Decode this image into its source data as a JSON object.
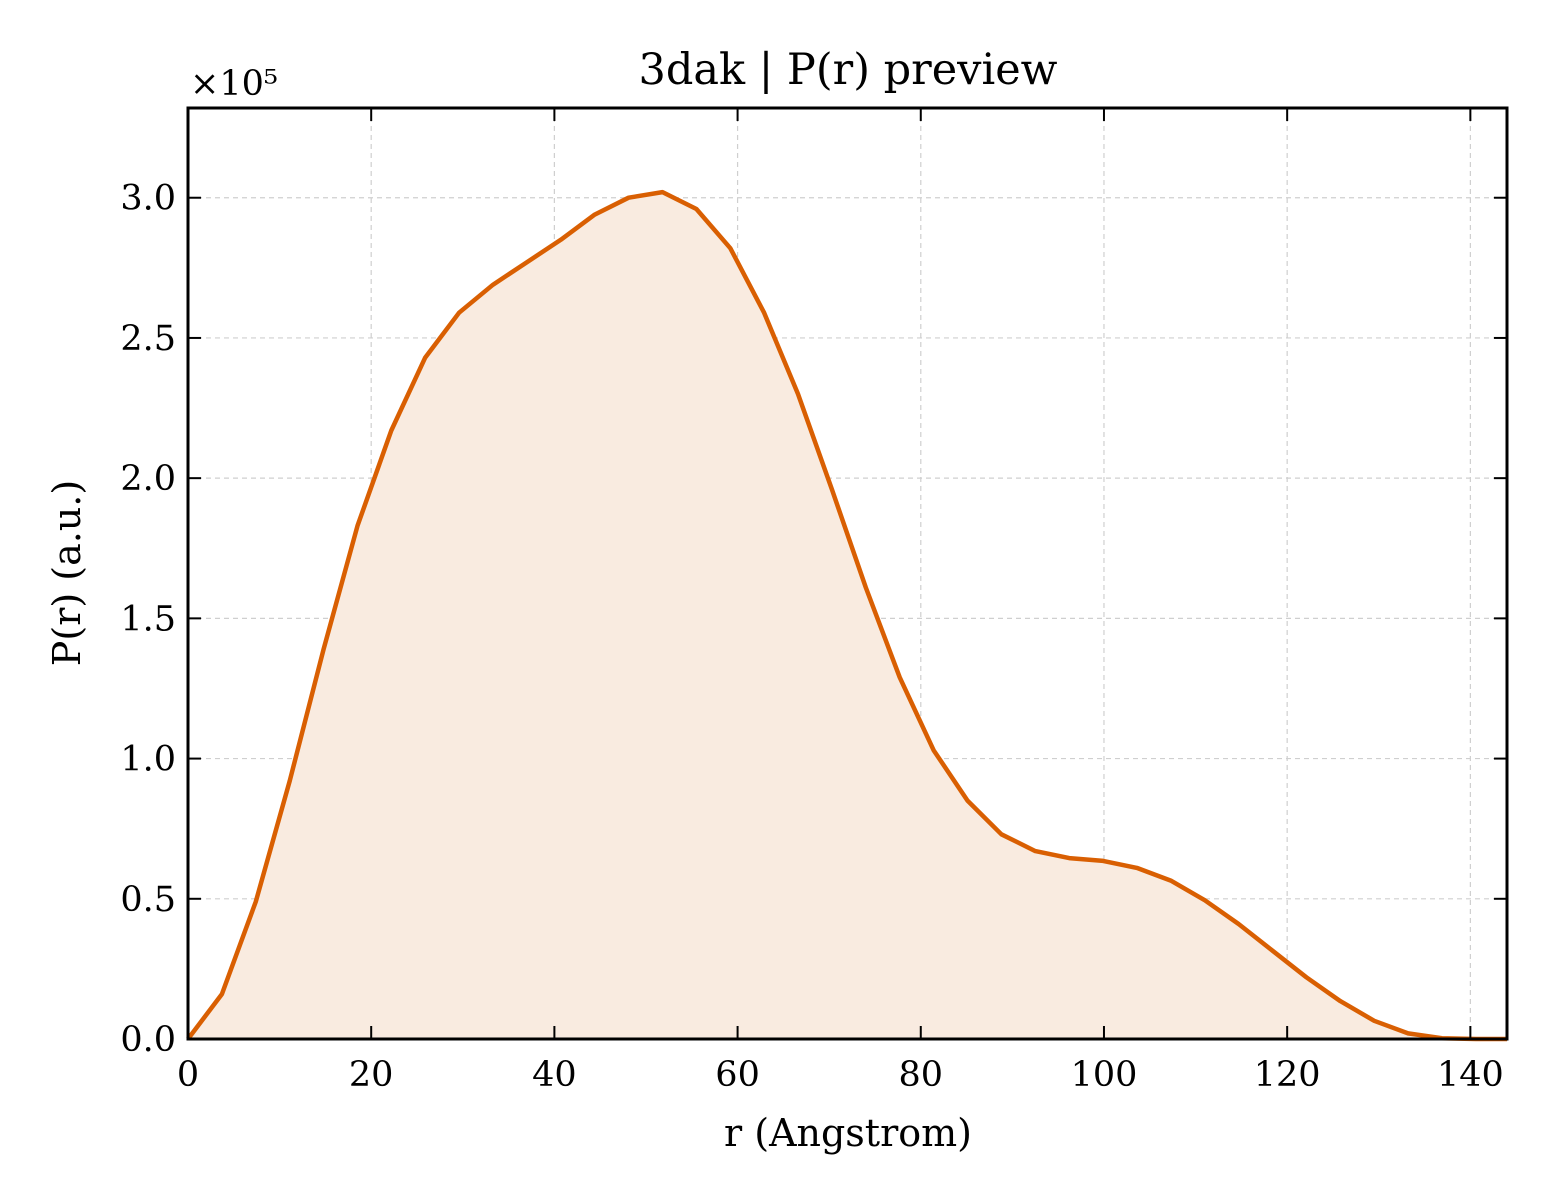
{
  "chart_data": {
    "type": "area",
    "title": "3dak | P(r) preview",
    "xlabel": "r (Angstrom)",
    "ylabel": "P(r) (a.u.)",
    "y_offset_label": "×10⁵",
    "xlim": [
      0,
      144
    ],
    "ylim": [
      0,
      3.32
    ],
    "x_ticks": [
      0,
      20,
      40,
      60,
      80,
      100,
      120,
      140
    ],
    "x_tick_labels": [
      "0",
      "20",
      "40",
      "60",
      "80",
      "100",
      "120",
      "140"
    ],
    "y_ticks": [
      0.0,
      0.5,
      1.0,
      1.5,
      2.0,
      2.5,
      3.0
    ],
    "y_tick_labels": [
      "0.0",
      "0.5",
      "1.0",
      "1.5",
      "2.0",
      "2.5",
      "3.0"
    ],
    "grid": true,
    "colors": {
      "line": "#d95f02",
      "fill": "#f9ebe0"
    },
    "series": [
      {
        "x": [
          0,
          3.7,
          7.4,
          11.1,
          14.8,
          18.5,
          22.2,
          25.9,
          29.6,
          33.3,
          37.0,
          40.7,
          44.4,
          48.1,
          51.8,
          55.5,
          59.2,
          62.9,
          66.6,
          70.3,
          74.0,
          77.7,
          81.4,
          85.1,
          88.8,
          92.5,
          96.2,
          99.9,
          103.6,
          107.3,
          111.0,
          114.7,
          118.4,
          122.1,
          125.8,
          129.5,
          133.2,
          136.9,
          140.6,
          144.0
        ],
        "y": [
          0.0,
          0.16,
          0.49,
          0.92,
          1.39,
          1.83,
          2.17,
          2.43,
          2.59,
          2.69,
          2.77,
          2.85,
          2.94,
          3.0,
          3.02,
          2.96,
          2.82,
          2.59,
          2.3,
          1.96,
          1.61,
          1.29,
          1.03,
          0.85,
          0.73,
          0.67,
          0.645,
          0.635,
          0.61,
          0.565,
          0.495,
          0.41,
          0.315,
          0.22,
          0.135,
          0.065,
          0.02,
          0.003,
          0.0,
          0.0
        ]
      }
    ]
  }
}
